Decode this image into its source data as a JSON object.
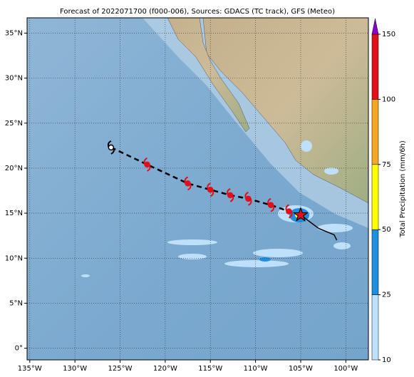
{
  "chart_data": {
    "type": "map",
    "title": "Forecast of 2022071700 (f000-006), Sources: GDACS (TC track), GFS (Meteo)",
    "xlim": [
      -135.3,
      -97.5
    ],
    "ylim": [
      -1.3,
      36.7
    ],
    "xticks": [
      {
        "value": -135,
        "label": "135°W"
      },
      {
        "value": -130,
        "label": "130°W"
      },
      {
        "value": -125,
        "label": "125°W"
      },
      {
        "value": -120,
        "label": "120°W"
      },
      {
        "value": -115,
        "label": "115°W"
      },
      {
        "value": -110,
        "label": "110°W"
      },
      {
        "value": -105,
        "label": "105°W"
      },
      {
        "value": -100,
        "label": "100°W"
      }
    ],
    "yticks": [
      {
        "value": 0,
        "label": "0°"
      },
      {
        "value": 5,
        "label": "5°N"
      },
      {
        "value": 10,
        "label": "10°N"
      },
      {
        "value": 15,
        "label": "15°N"
      },
      {
        "value": 20,
        "label": "20°N"
      },
      {
        "value": 25,
        "label": "25°N"
      },
      {
        "value": 30,
        "label": "30°N"
      },
      {
        "value": 35,
        "label": "35°N"
      }
    ],
    "grid": true,
    "track": {
      "lon": [
        -126,
        -122,
        -117.5,
        -115,
        -112.8,
        -110.8,
        -108.3,
        -106.3,
        -105
      ],
      "lat": [
        22.3,
        20.4,
        18.3,
        17.6,
        17.0,
        16.6,
        15.9,
        15.2,
        14.8
      ]
    },
    "past_track": {
      "lon": [
        -105,
        -103,
        -101.3,
        -101
      ],
      "lat": [
        14.8,
        13.3,
        12.6,
        12.0
      ]
    },
    "colorbar": {
      "label": "Total Precipitation (mm/6h)",
      "ticks": [
        10,
        25,
        50,
        75,
        100,
        150
      ],
      "colors": [
        "#bfe0fb",
        "#1e8ee0",
        "#ffff00",
        "#f5a623",
        "#e0101a"
      ],
      "extend_color": "#8a00c8"
    }
  }
}
